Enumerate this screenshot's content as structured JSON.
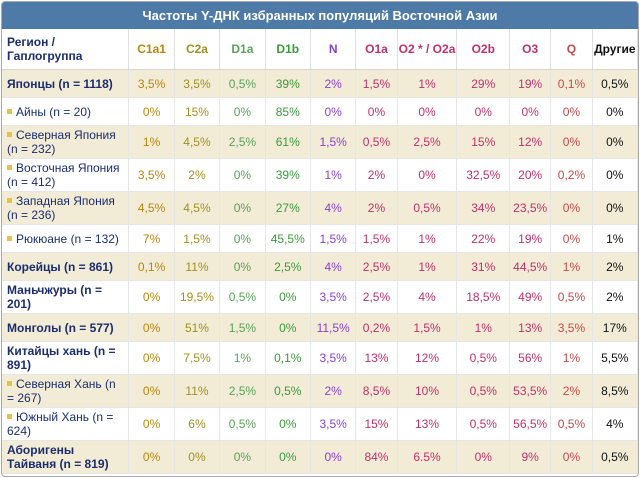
{
  "title": "Частоты Y-ДНК избранных популяций Восточной Азии",
  "header": {
    "region_label": "Регион / Гаплогруппа",
    "columns": [
      {
        "key": "C1a1",
        "label": "C1a1",
        "color": "#b8860b"
      },
      {
        "key": "C2a",
        "label": "C2a",
        "color": "#a09020"
      },
      {
        "key": "D1a",
        "label": "D1a",
        "color": "#5aa05a"
      },
      {
        "key": "D1b",
        "label": "D1b",
        "color": "#3a9a3a"
      },
      {
        "key": "N",
        "label": "N",
        "color": "#8a3fd1"
      },
      {
        "key": "O1a",
        "label": "O1a",
        "color": "#c0306a"
      },
      {
        "key": "O2",
        "label": "O2 * / O2a",
        "color": "#c0306a"
      },
      {
        "key": "O2b",
        "label": "O2b",
        "color": "#c0306a"
      },
      {
        "key": "O3",
        "label": "O3",
        "color": "#c0306a"
      },
      {
        "key": "Q",
        "label": "Q",
        "color": "#c44a4a"
      },
      {
        "key": "other",
        "label": "Другие",
        "color": "#111111"
      }
    ]
  },
  "rows": [
    {
      "name": "Японцы (n = 1118)",
      "level": "main",
      "values": [
        "3,5%",
        "3,5%",
        "0,5%",
        "39%",
        "2%",
        "1,5%",
        "1%",
        "29%",
        "19%",
        "0,1%",
        "0,5%"
      ]
    },
    {
      "name": "Айны (n = 20)",
      "level": "sub",
      "values": [
        "0%",
        "15%",
        "0%",
        "85%",
        "0%",
        "0%",
        "0%",
        "0%",
        "0%",
        "0%",
        "0%"
      ]
    },
    {
      "name": "Северная Япония (n = 232)",
      "level": "sub",
      "values": [
        "1%",
        "4,5%",
        "2,5%",
        "61%",
        "1,5%",
        "0,5%",
        "2,5%",
        "15%",
        "12%",
        "0%",
        "0%"
      ]
    },
    {
      "name": "Восточная Япония (n = 412)",
      "level": "sub",
      "values": [
        "3,5%",
        "2%",
        "0%",
        "39%",
        "1%",
        "2%",
        "0%",
        "32,5%",
        "20%",
        "0,2%",
        "0%"
      ]
    },
    {
      "name": "Западная Япония (n = 236)",
      "level": "sub",
      "values": [
        "4,5%",
        "4,5%",
        "0%",
        "27%",
        "4%",
        "2%",
        "0,5%",
        "34%",
        "23,5%",
        "0%",
        "0%"
      ]
    },
    {
      "name": "Рюкюане (n = 132)",
      "level": "sub",
      "values": [
        "7%",
        "1,5%",
        "0%",
        "45,5%",
        "1,5%",
        "1,5%",
        "1%",
        "22%",
        "19%",
        "0%",
        "1%"
      ]
    },
    {
      "name": "Корейцы (n = 861)",
      "level": "main",
      "values": [
        "0,1%",
        "11%",
        "0%",
        "2,5%",
        "4%",
        "2,5%",
        "1%",
        "31%",
        "44,5%",
        "1%",
        "2%"
      ]
    },
    {
      "name": "Маньчжуры (n = 201)",
      "level": "main",
      "values": [
        "0%",
        "19,5%",
        "0,5%",
        "0%",
        "3,5%",
        "2,5%",
        "4%",
        "18,5%",
        "49%",
        "0,5%",
        "2%"
      ]
    },
    {
      "name": "Монголы (n = 577)",
      "level": "main",
      "values": [
        "0%",
        "51%",
        "1,5%",
        "0%",
        "11,5%",
        "0,2%",
        "1,5%",
        "1%",
        "13%",
        "3,5%",
        "17%"
      ]
    },
    {
      "name": "Китайцы хань (n = 891)",
      "level": "main",
      "values": [
        "0%",
        "7,5%",
        "1%",
        "0,1%",
        "3,5%",
        "13%",
        "12%",
        "0,5%",
        "56%",
        "1%",
        "5,5%"
      ]
    },
    {
      "name": "Северная Хань (n = 267)",
      "level": "sub",
      "values": [
        "0%",
        "11%",
        "2,5%",
        "0,5%",
        "2%",
        "8,5%",
        "10%",
        "0,5%",
        "53,5%",
        "2%",
        "8,5%"
      ]
    },
    {
      "name": "Южный Хань (n = 624)",
      "level": "sub",
      "values": [
        "0%",
        "6%",
        "0,5%",
        "0%",
        "3,5%",
        "15%",
        "13%",
        "0,5%",
        "56,5%",
        "0,5%",
        "4%"
      ]
    },
    {
      "name": "Аборигены Тайваня (n = 819)",
      "level": "main",
      "values": [
        "0%",
        "0%",
        "0%",
        "0%",
        "0%",
        "84%",
        "6.5%",
        "0%",
        "9%",
        "0%",
        "0,5%"
      ]
    }
  ]
}
